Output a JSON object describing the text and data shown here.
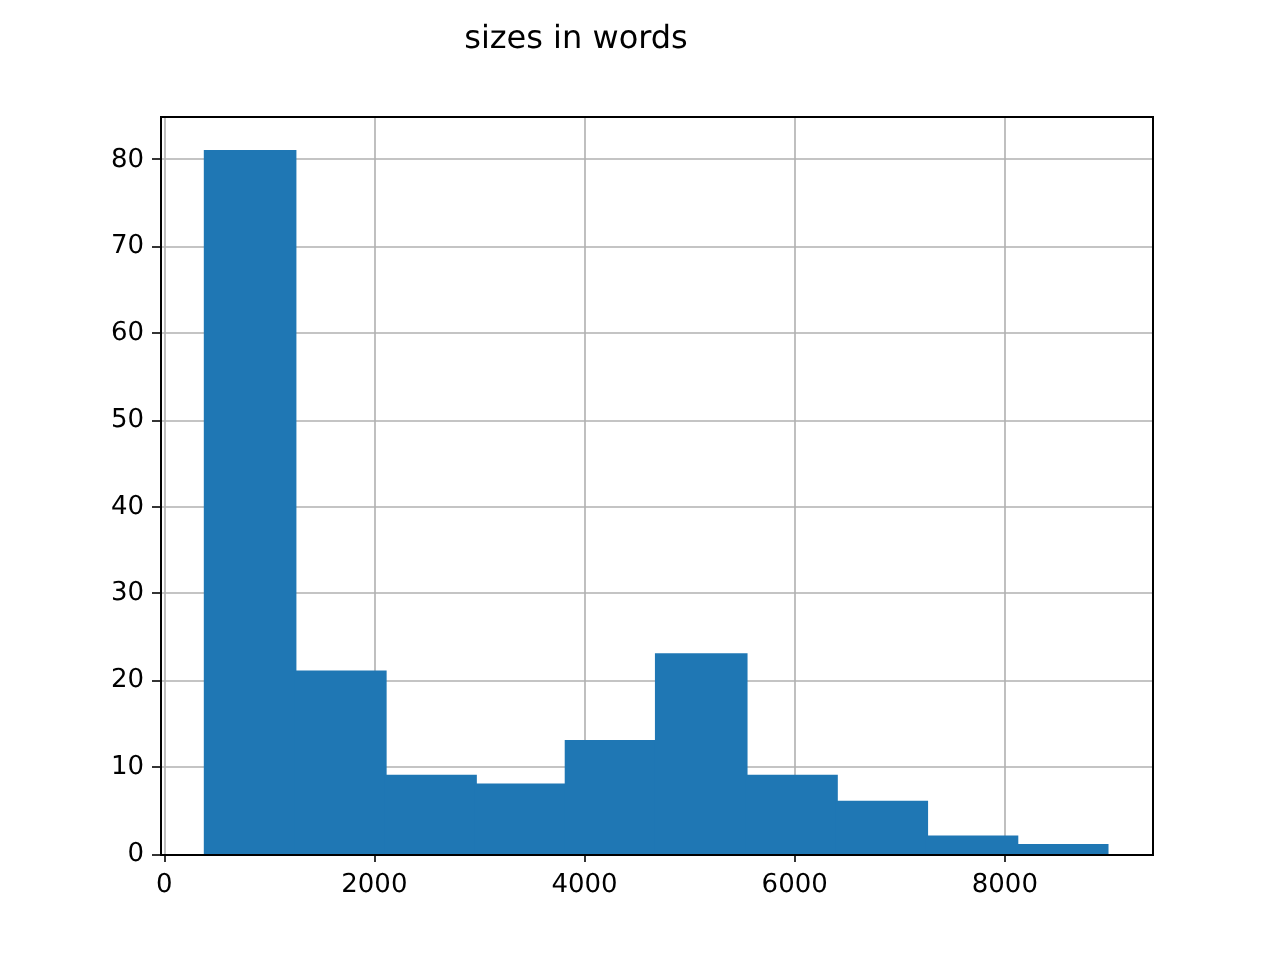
{
  "chart_data": {
    "type": "histogram",
    "title": "sizes in words",
    "bins": [
      388,
      1247,
      2105,
      2964,
      3823,
      4681,
      5540,
      6399,
      7258,
      8116,
      8975
    ],
    "values": [
      81,
      21,
      9,
      8,
      13,
      23,
      9,
      6,
      2,
      1
    ],
    "color": "#1f77b4",
    "xlim": [
      -40,
      9400
    ],
    "xticks": [
      0,
      2000,
      4000,
      6000,
      8000
    ],
    "ylim": [
      0,
      85
    ],
    "yticks": [
      0,
      10,
      20,
      30,
      40,
      50,
      60,
      70,
      80
    ],
    "grid": true
  }
}
